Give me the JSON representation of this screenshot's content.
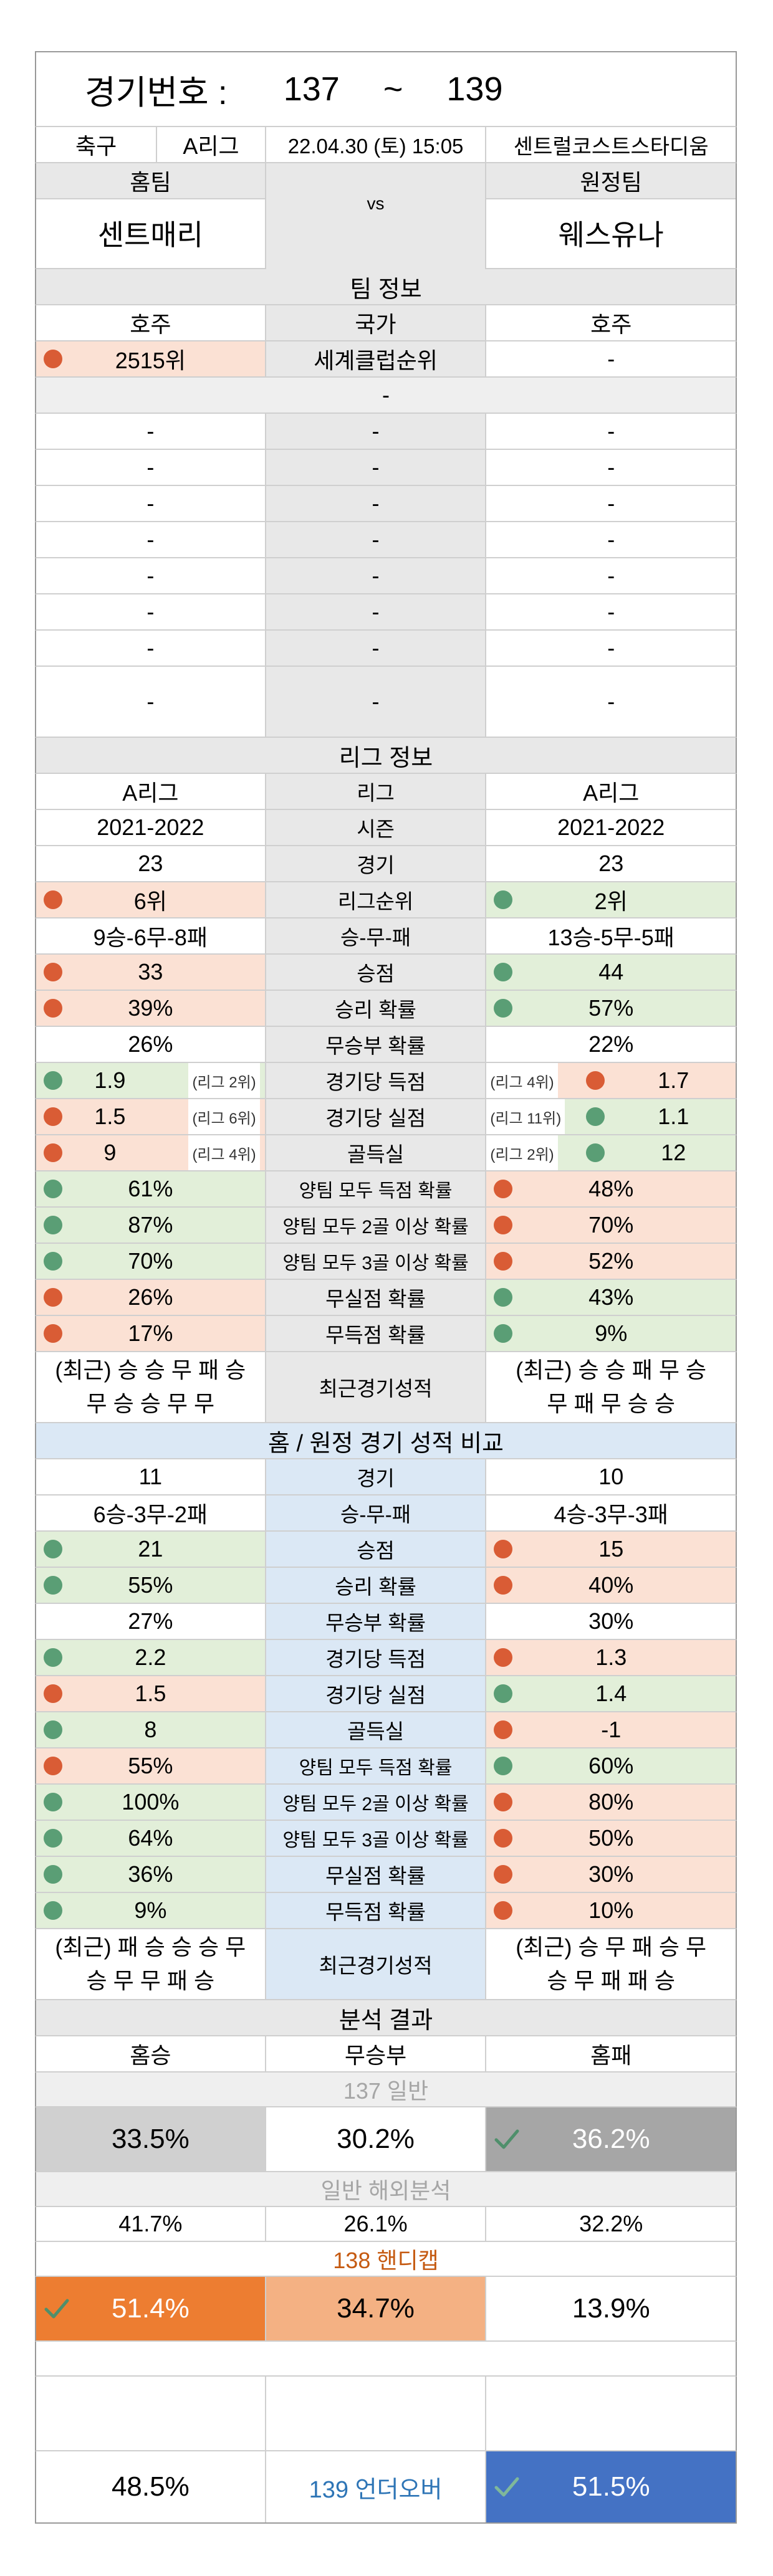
{
  "header": {
    "title_label": "경기번호 :",
    "from": "137",
    "sep": "~",
    "to": "139"
  },
  "match": {
    "sport": "축구",
    "league": "A리그",
    "datetime": "22.04.30 (토) 15:05",
    "venue": "센트럴코스트스타디움",
    "home_label": "홈팀",
    "away_label": "원정팀",
    "vs": "vs",
    "home_team": "센트매리",
    "away_team": "웨스유나"
  },
  "team_info": {
    "section": "팀 정보",
    "home_country": "호주",
    "country_label": "국가",
    "away_country": "호주",
    "home_world_rank": "2515위",
    "world_rank_label": "세계클럽순위",
    "away_world_rank": "-",
    "dash": "-"
  },
  "league_info": {
    "section": "리그 정보",
    "rows": [
      {
        "home": "A리그",
        "label": "리그",
        "away": "A리그"
      },
      {
        "home": "2021-2022",
        "label": "시즌",
        "away": "2021-2022"
      },
      {
        "home": "23",
        "label": "경기",
        "away": "23"
      },
      {
        "home": "6위",
        "label": "리그순위",
        "away": "2위",
        "hc": "red",
        "ac": "green"
      },
      {
        "home": "9승-6무-8패",
        "label": "승-무-패",
        "away": "13승-5무-5패"
      },
      {
        "home": "33",
        "label": "승점",
        "away": "44",
        "hc": "red",
        "ac": "green"
      },
      {
        "home": "39%",
        "label": "승리 확률",
        "away": "57%",
        "hc": "red",
        "ac": "green"
      },
      {
        "home": "26%",
        "label": "무승부 확률",
        "away": "22%"
      },
      {
        "home": "1.9",
        "hr": "(리그 2위)",
        "label": "경기당 득점",
        "away": "1.7",
        "ar": "(리그 4위)",
        "hc": "green",
        "ac": "red"
      },
      {
        "home": "1.5",
        "hr": "(리그 6위)",
        "label": "경기당 실점",
        "away": "1.1",
        "ar": "(리그 11위)",
        "hc": "red",
        "ac": "green"
      },
      {
        "home": "9",
        "hr": "(리그 4위)",
        "label": "골득실",
        "away": "12",
        "ar": "(리그 2위)",
        "hc": "red",
        "ac": "green"
      },
      {
        "home": "61%",
        "label": "양팀 모두 득점 확률",
        "away": "48%",
        "hc": "green",
        "ac": "red"
      },
      {
        "home": "87%",
        "label": "양팀 모두 2골 이상 확률",
        "away": "70%",
        "hc": "green",
        "ac": "red"
      },
      {
        "home": "70%",
        "label": "양팀 모두 3골 이상 확률",
        "away": "52%",
        "hc": "green",
        "ac": "red"
      },
      {
        "home": "26%",
        "label": "무실점 확률",
        "away": "43%",
        "hc": "red",
        "ac": "green"
      },
      {
        "home": "17%",
        "label": "무득점 확률",
        "away": "9%",
        "hc": "red",
        "ac": "green"
      }
    ],
    "recent_label": "최근경기성적",
    "home_recent_1": "(최근) 승 승 무 패 승",
    "home_recent_2": "무 승 승 무 무",
    "away_recent_1": "(최근) 승 승 패 무 승",
    "away_recent_2": "무 패 무 승 승"
  },
  "ha_compare": {
    "section": "홈 / 원정 경기 성적 비교",
    "rows": [
      {
        "home": "11",
        "label": "경기",
        "away": "10"
      },
      {
        "home": "6승-3무-2패",
        "label": "승-무-패",
        "away": "4승-3무-3패"
      },
      {
        "home": "21",
        "label": "승점",
        "away": "15",
        "hc": "green",
        "ac": "red"
      },
      {
        "home": "55%",
        "label": "승리 확률",
        "away": "40%",
        "hc": "green",
        "ac": "red"
      },
      {
        "home": "27%",
        "label": "무승부 확률",
        "away": "30%"
      },
      {
        "home": "2.2",
        "label": "경기당 득점",
        "away": "1.3",
        "hc": "green",
        "ac": "red"
      },
      {
        "home": "1.5",
        "label": "경기당 실점",
        "away": "1.4",
        "hc": "red",
        "ac": "green"
      },
      {
        "home": "8",
        "label": "골득실",
        "away": "-1",
        "hc": "green",
        "ac": "red"
      },
      {
        "home": "55%",
        "label": "양팀 모두 득점 확률",
        "away": "60%",
        "hc": "red",
        "ac": "green"
      },
      {
        "home": "100%",
        "label": "양팀 모두 2골 이상 확률",
        "away": "80%",
        "hc": "green",
        "ac": "red"
      },
      {
        "home": "64%",
        "label": "양팀 모두 3골 이상 확률",
        "away": "50%",
        "hc": "green",
        "ac": "red"
      },
      {
        "home": "36%",
        "label": "무실점 확률",
        "away": "30%",
        "hc": "green",
        "ac": "red"
      },
      {
        "home": "9%",
        "label": "무득점 확률",
        "away": "10%",
        "hc": "green",
        "ac": "red"
      }
    ],
    "recent_label": "최근경기성적",
    "home_recent_1": "(최근) 패 승 승 승 무",
    "home_recent_2": "승 무 무 패 승",
    "away_recent_1": "(최근) 승 무 패 승 무",
    "away_recent_2": "승 무 패 패 승"
  },
  "analysis": {
    "section": "분석 결과",
    "home_win": "홈승",
    "draw": "무승부",
    "home_loss": "홈패",
    "general_title": "137 일반",
    "g_home": "33.5%",
    "g_draw": "30.2%",
    "g_away": "36.2%",
    "overseas_title": "일반 해외분석",
    "o_home": "41.7%",
    "o_draw": "26.1%",
    "o_away": "32.2%",
    "handicap_title": "138 핸디캡",
    "h_home": "51.4%",
    "h_draw": "34.7%",
    "h_away": "13.9%",
    "ou_under": "48.5%",
    "ou_title": "139 언더오버",
    "ou_over": "51.5%"
  },
  "colors": {
    "red_bg": "#fbe1d4",
    "green_bg": "#e2efd9",
    "blue_bg": "#dbe8f5",
    "red_dot": "#d95c35",
    "green_dot": "#5a9e75",
    "orange": "#ed7d31",
    "light_orange": "#f4b183",
    "gray_box": "#d0d0d0",
    "dark_gray_box": "#a6a6a6",
    "ou_blue": "#4472c4",
    "handicap_text": "#c55a11",
    "ou_text": "#2e75b6"
  }
}
